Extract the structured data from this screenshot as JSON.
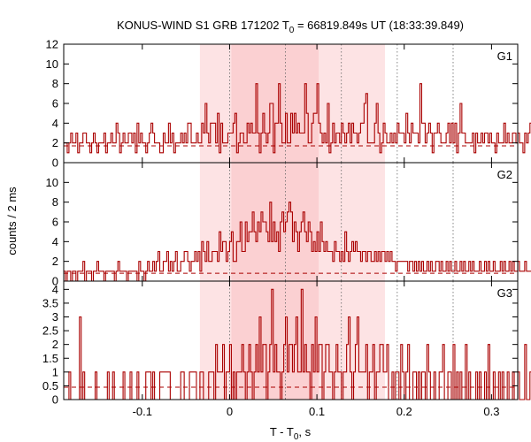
{
  "chart_data": {
    "type": "line",
    "title": "KONUS-WIND S1 GRB 171202 T",
    "title_sub": "0",
    "title_rest": " = 66819.849s UT (18:33:39.849)",
    "xlabel_main": "T - T",
    "xlabel_sub": "0",
    "xlabel_rest": ", s",
    "ylabel": "counts / 2 ms",
    "xlim": [
      -0.19,
      0.33
    ],
    "x_ticks": [
      -0.1,
      0,
      0.1,
      0.2,
      0.3
    ],
    "x_tick_labels": [
      "-0.1",
      "0",
      "0.1",
      "0.2",
      "0.3"
    ],
    "bin_width": 0.002,
    "line_color": "#aa0000",
    "shade_light": "#fde3e4",
    "shade_dark": "#fbd0d2",
    "shaded_intervals": [
      {
        "from": -0.034,
        "to": 0.178,
        "shade": "light"
      },
      {
        "from": 0.002,
        "to": 0.102,
        "shade": "dark"
      }
    ],
    "vertical_dotted_lines": [
      0.0,
      0.064,
      0.128,
      0.192,
      0.256
    ],
    "panels": [
      {
        "name": "G1",
        "ylim": [
          0,
          12
        ],
        "y_ticks": [
          0,
          2,
          4,
          6,
          8,
          10,
          12
        ],
        "background": 1.7,
        "values": [
          2,
          2,
          1,
          2,
          3,
          2,
          2,
          3,
          1,
          2,
          2,
          3,
          3,
          2,
          2,
          1,
          2,
          3,
          2,
          1,
          2,
          2,
          2,
          3,
          1,
          2,
          2,
          3,
          2,
          2,
          4,
          3,
          1,
          2,
          3,
          2,
          2,
          3,
          3,
          2,
          3,
          1,
          4,
          2,
          3,
          2,
          2,
          1,
          2,
          3,
          4,
          3,
          2,
          2,
          2,
          1,
          1,
          3,
          2,
          2,
          4,
          2,
          3,
          1,
          2,
          2,
          2,
          3,
          2,
          3,
          2,
          4,
          4,
          2,
          2,
          2,
          3,
          2,
          2,
          4,
          3,
          6,
          3,
          2,
          4,
          4,
          4,
          2,
          5,
          1,
          4,
          2,
          2,
          2,
          3,
          3,
          3,
          4,
          5,
          1,
          2,
          3,
          3,
          2,
          2,
          4,
          3,
          4,
          3,
          3,
          8,
          3,
          1,
          3,
          5,
          3,
          2,
          3,
          6,
          6,
          1,
          4,
          4,
          8,
          4,
          2,
          2,
          5,
          2,
          2,
          5,
          3,
          5,
          3,
          4,
          3,
          3,
          3,
          8,
          5,
          2,
          2,
          4,
          5,
          5,
          8,
          4,
          3,
          2,
          3,
          2,
          6,
          1,
          2,
          4,
          2,
          3,
          3,
          2,
          4,
          3,
          2,
          3,
          4,
          2,
          4,
          3,
          3,
          2,
          3,
          4,
          4,
          6,
          7,
          2,
          2,
          2,
          2,
          4,
          6,
          3,
          1,
          2,
          4,
          3,
          2,
          2,
          3,
          2,
          3,
          2,
          4,
          3,
          3,
          3,
          2,
          5,
          3,
          2,
          4,
          3,
          3,
          3,
          2,
          8,
          4,
          4,
          2,
          3,
          4,
          3,
          1,
          3,
          3,
          4,
          3,
          2,
          2,
          2,
          3,
          4,
          2,
          4,
          2,
          4,
          1,
          3,
          6,
          3,
          3,
          2,
          2,
          2,
          2,
          3,
          1,
          3,
          2,
          2,
          3,
          2,
          3,
          3,
          2,
          3,
          2,
          2,
          1,
          3,
          2,
          2,
          2,
          4,
          2,
          3,
          2,
          2,
          3,
          3,
          2,
          3,
          2,
          2,
          1,
          3,
          2,
          3,
          4,
          2,
          2,
          4,
          3,
          2,
          1,
          3,
          2,
          2,
          3,
          2,
          2,
          2,
          3,
          2,
          2,
          3,
          2
        ]
      },
      {
        "name": "G2",
        "ylim": [
          0,
          12
        ],
        "y_ticks": [
          0,
          2,
          4,
          6,
          8,
          10
        ],
        "background": 0.8,
        "values": [
          1,
          0,
          1,
          1,
          0,
          1,
          1,
          0,
          1,
          1,
          1,
          2,
          0,
          1,
          1,
          1,
          0,
          1,
          1,
          2,
          1,
          1,
          1,
          0,
          1,
          1,
          1,
          1,
          1,
          0,
          1,
          2,
          1,
          1,
          1,
          1,
          0,
          1,
          1,
          1,
          1,
          1,
          0,
          2,
          1,
          1,
          0,
          1,
          2,
          1,
          1,
          2,
          1,
          2,
          3,
          1,
          1,
          2,
          2,
          3,
          1,
          2,
          1,
          2,
          3,
          1,
          1,
          2,
          2,
          3,
          3,
          2,
          1,
          2,
          2,
          3,
          2,
          3,
          1,
          4,
          3,
          2,
          4,
          2,
          2,
          3,
          3,
          3,
          2,
          5,
          3,
          4,
          4,
          2,
          3,
          4,
          5,
          2,
          2,
          4,
          4,
          6,
          3,
          3,
          6,
          4,
          5,
          5,
          7,
          5,
          4,
          6,
          5,
          7,
          6,
          6,
          5,
          4,
          8,
          4,
          6,
          4,
          5,
          3,
          6,
          7,
          5,
          6,
          7,
          8,
          7,
          4,
          6,
          5,
          3,
          5,
          6,
          7,
          5,
          4,
          6,
          5,
          3,
          4,
          3,
          5,
          3,
          6,
          4,
          3,
          4,
          3,
          3,
          3,
          2,
          4,
          3,
          3,
          2,
          3,
          2,
          5,
          3,
          2,
          3,
          4,
          3,
          4,
          3,
          3,
          2,
          3,
          3,
          2,
          3,
          3,
          2,
          2,
          3,
          2,
          3,
          2,
          3,
          3,
          2,
          3,
          2,
          3,
          2,
          2,
          1,
          2,
          2,
          2,
          2,
          2,
          2,
          1,
          2,
          2,
          1,
          2,
          1,
          2,
          1,
          2,
          1,
          1,
          2,
          1,
          2,
          1,
          1,
          2,
          2,
          1,
          2,
          1,
          1,
          2,
          1,
          2,
          1,
          1,
          2,
          1,
          1,
          2,
          1,
          2,
          1,
          1,
          2,
          1,
          2,
          1,
          1,
          1,
          2,
          1,
          1,
          2,
          1,
          2,
          1,
          1,
          2,
          1,
          1,
          1,
          2,
          1,
          2,
          1,
          1,
          2,
          1,
          2,
          1,
          1,
          2,
          1,
          1,
          1,
          2,
          1,
          1,
          1,
          2,
          1,
          2,
          1
        ]
      },
      {
        "name": "G3",
        "ylim": [
          0,
          4.3
        ],
        "y_ticks": [
          0,
          0.5,
          1,
          1.5,
          2,
          2.5,
          3,
          3.5,
          4
        ],
        "y_tick_labels": [
          "0",
          "0.5",
          "1",
          "1.5",
          "2",
          "2.5",
          "3",
          "3.5",
          "4"
        ],
        "background": 0.45,
        "values": [
          0,
          0,
          0,
          1,
          0,
          0,
          0,
          0,
          0,
          3,
          0,
          1,
          0,
          0,
          0,
          0,
          0,
          0,
          1,
          0,
          0,
          0,
          0,
          0,
          0,
          1,
          0,
          0,
          1,
          0,
          0,
          0,
          0,
          0,
          1,
          0,
          0,
          0,
          1,
          0,
          0,
          0,
          1,
          0,
          0,
          0,
          0,
          1,
          1,
          1,
          0,
          1,
          0,
          0,
          0,
          1,
          1,
          1,
          1,
          1,
          1,
          0,
          0,
          0,
          0,
          0,
          0,
          1,
          1,
          0,
          0,
          0,
          1,
          1,
          1,
          1,
          0,
          0,
          1,
          1,
          0,
          0,
          0,
          1,
          1,
          1,
          0,
          2,
          1,
          1,
          1,
          2,
          0,
          1,
          1,
          2,
          0,
          1,
          0,
          1,
          1,
          1,
          2,
          1,
          0,
          1,
          2,
          1,
          0,
          1,
          2,
          1,
          3,
          1,
          2,
          2,
          0,
          1,
          2,
          4,
          1,
          2,
          1,
          1,
          0,
          1,
          2,
          3,
          1,
          2,
          2,
          1,
          2,
          3,
          1,
          1,
          4,
          1,
          2,
          1,
          1,
          0,
          2,
          1,
          3,
          1,
          2,
          2,
          0,
          1,
          2,
          2,
          1,
          1,
          0,
          1,
          2,
          1,
          1,
          0,
          1,
          1,
          2,
          3,
          1,
          0,
          1,
          2,
          3,
          1,
          1,
          1,
          1,
          2,
          0,
          1,
          1,
          2,
          0,
          1,
          1,
          2,
          2,
          1,
          1,
          2,
          0,
          0,
          1,
          0,
          1,
          1,
          0,
          2,
          1,
          0,
          1,
          2,
          0,
          0,
          1,
          1,
          0,
          1,
          0,
          1,
          1,
          0,
          2,
          1,
          0,
          0,
          1,
          0,
          0,
          1,
          1,
          2,
          0,
          0,
          1,
          1,
          0,
          2,
          0,
          1,
          0,
          1,
          0,
          0,
          2,
          0,
          1,
          0,
          0,
          0,
          1,
          0,
          1,
          0,
          0,
          1,
          0,
          2,
          0,
          0,
          1,
          0,
          0,
          1,
          0,
          1,
          0,
          0,
          1,
          0,
          0,
          1,
          0,
          0,
          1,
          0,
          0,
          0,
          2,
          0,
          0,
          1,
          1,
          0,
          0,
          3,
          0,
          1,
          0,
          2,
          0,
          1
        ]
      }
    ]
  }
}
